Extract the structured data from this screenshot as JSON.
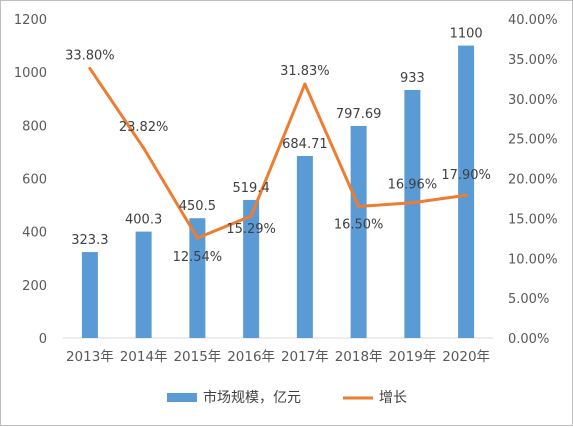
{
  "chart_data": {
    "type": "bar+line",
    "categories": [
      "2013年",
      "2014年",
      "2015年",
      "2016年",
      "2017年",
      "2018年",
      "2019年",
      "2020年"
    ],
    "series": [
      {
        "name": "市场规模，亿元",
        "type": "bar",
        "axis": "left",
        "color": "#5b9bd5",
        "values": [
          323.3,
          400.3,
          450.5,
          519.4,
          684.71,
          797.69,
          933,
          1100
        ],
        "labels": [
          "323.3",
          "400.3",
          "450.5",
          "519.4",
          "684.71",
          "797.69",
          "933",
          "1100"
        ]
      },
      {
        "name": "增长",
        "type": "line",
        "axis": "right",
        "color": "#ed7d31",
        "values": [
          33.8,
          23.82,
          12.54,
          15.29,
          31.83,
          16.5,
          16.96,
          17.9
        ],
        "labels": [
          "33.80%",
          "23.82%",
          "12.54%",
          "15.29%",
          "31.83%",
          "16.50%",
          "16.96%",
          "17.90%"
        ]
      }
    ],
    "y_left": {
      "range": [
        0,
        1200
      ],
      "ticks": [
        "0",
        "200",
        "400",
        "600",
        "800",
        "1000",
        "1200"
      ]
    },
    "y_right": {
      "range": [
        0,
        40
      ],
      "ticks": [
        "0.00%",
        "5.00%",
        "10.00%",
        "15.00%",
        "20.00%",
        "25.00%",
        "30.00%",
        "35.00%",
        "40.00%"
      ]
    },
    "grid": false,
    "legend": "bottom"
  }
}
